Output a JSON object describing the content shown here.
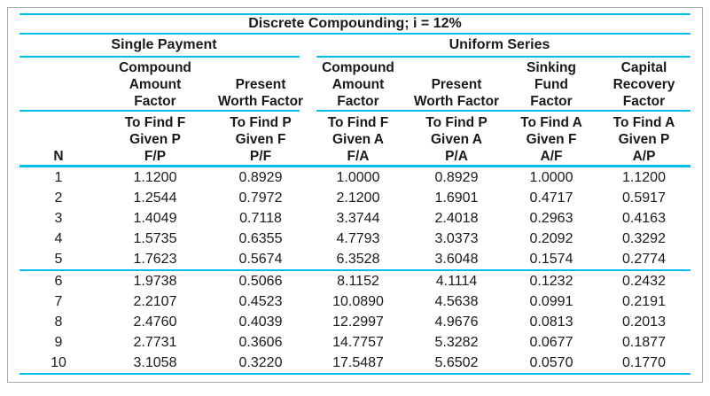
{
  "chart_data": {
    "type": "table",
    "title": "Discrete Compounding; i = 12%",
    "column_groups": [
      {
        "label": "Single Payment",
        "columns": [
          "F/P",
          "P/F"
        ]
      },
      {
        "label": "Uniform Series",
        "columns": [
          "F/A",
          "P/A",
          "A/F",
          "A/P"
        ]
      }
    ],
    "columns": [
      {
        "id": "N",
        "label": "N"
      },
      {
        "id": "F/P",
        "group": "Single Payment",
        "factor": "Compound Amount Factor",
        "find": "To Find F Given P"
      },
      {
        "id": "P/F",
        "group": "Single Payment",
        "factor": "Present Worth Factor",
        "find": "To Find P Given F"
      },
      {
        "id": "F/A",
        "group": "Uniform Series",
        "factor": "Compound Amount Factor",
        "find": "To Find F Given A"
      },
      {
        "id": "P/A",
        "group": "Uniform Series",
        "factor": "Present Worth Factor",
        "find": "To Find P Given A"
      },
      {
        "id": "A/F",
        "group": "Uniform Series",
        "factor": "Sinking Fund Factor",
        "find": "To Find A Given F"
      },
      {
        "id": "A/P",
        "group": "Uniform Series",
        "factor": "Capital Recovery Factor",
        "find": "To Find A Given P"
      }
    ],
    "rows": [
      [
        "1",
        "1.1200",
        "0.8929",
        "1.0000",
        "0.8929",
        "1.0000",
        "1.1200"
      ],
      [
        "2",
        "1.2544",
        "0.7972",
        "2.1200",
        "1.6901",
        "0.4717",
        "0.5917"
      ],
      [
        "3",
        "1.4049",
        "0.7118",
        "3.3744",
        "2.4018",
        "0.2963",
        "0.4163"
      ],
      [
        "4",
        "1.5735",
        "0.6355",
        "4.7793",
        "3.0373",
        "0.2092",
        "0.3292"
      ],
      [
        "5",
        "1.7623",
        "0.5674",
        "6.3528",
        "3.6048",
        "0.1574",
        "0.2774"
      ],
      [
        "6",
        "1.9738",
        "0.5066",
        "8.1152",
        "4.1114",
        "0.1232",
        "0.2432"
      ],
      [
        "7",
        "2.2107",
        "0.4523",
        "10.0890",
        "4.5638",
        "0.0991",
        "0.2191"
      ],
      [
        "8",
        "2.4760",
        "0.4039",
        "12.2997",
        "4.9676",
        "0.0813",
        "0.2013"
      ],
      [
        "9",
        "2.7731",
        "0.3606",
        "14.7757",
        "5.3282",
        "0.0677",
        "0.1877"
      ],
      [
        "10",
        "3.1058",
        "0.3220",
        "17.5487",
        "5.6502",
        "0.0570",
        "0.1770"
      ]
    ],
    "divider_after_row": 5
  },
  "headers": {
    "n": "N",
    "factor": [
      "Compound\nAmount\nFactor",
      "Present\nWorth Factor",
      "Compound\nAmount\nFactor",
      "Present\nWorth Factor",
      "Sinking\nFund\nFactor",
      "Capital\nRecovery\nFactor"
    ],
    "find": [
      "To Find F\nGiven P\nF/P",
      "To Find P\nGiven F\nP/F",
      "To Find F\nGiven A\nF/A",
      "To Find P\nGiven A\nP/A",
      "To Find A\nGiven F\nA/F",
      "To Find A\nGiven P\nA/P"
    ]
  },
  "colors": {
    "rule_cyan": "#00bff0",
    "border_gray": "#a9a9a9",
    "text": "#1a1a1a",
    "background": "#ffffff"
  }
}
